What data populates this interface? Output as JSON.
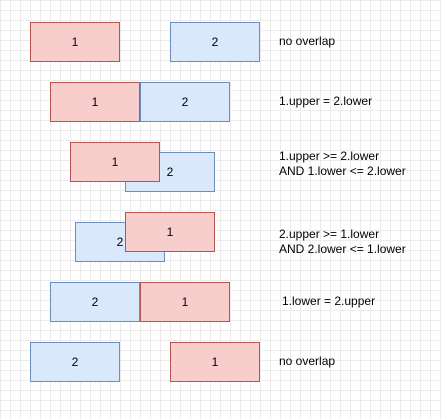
{
  "colors": {
    "box1_fill": "#f8cecc",
    "box1_stroke": "#b85450",
    "box2_fill": "#dae8fc",
    "box2_stroke": "#6c8ebf"
  },
  "rows": [
    {
      "box1": "1",
      "box2": "2",
      "note": [
        "no overlap"
      ]
    },
    {
      "box1": "1",
      "box2": "2",
      "note": [
        "1.upper = 2.lower"
      ]
    },
    {
      "box1": "1",
      "box2": "2",
      "note": [
        "1.upper >= 2.lower",
        "AND 1.lower <= 2.lower"
      ]
    },
    {
      "box1": "1",
      "box2": "2",
      "note": [
        "2.upper >= 1.lower",
        "AND 2.lower <= 1.lower"
      ]
    },
    {
      "box1": "1",
      "box2": "2",
      "note": [
        "1.lower = 2.upper"
      ]
    },
    {
      "box1": "1",
      "box2": "2",
      "note": [
        "no overlap"
      ]
    }
  ]
}
